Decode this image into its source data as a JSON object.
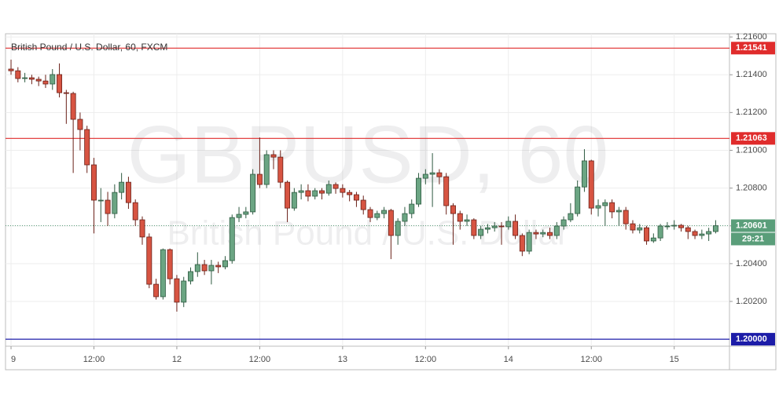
{
  "chart_data": {
    "type": "candlestick",
    "title": "British Pound / U.S. Dollar, 60, FXCM",
    "watermark": "GBPUSD, 60",
    "watermark_subtitle": "British Pound / U.S. Dollar",
    "up_color": "#6ba583",
    "down_color": "#d75442",
    "grid": true,
    "xlim": [
      -0.8,
      104
    ],
    "ylim": [
      1.19963,
      1.21617
    ],
    "xticks": [
      {
        "value": 0,
        "label": "9"
      },
      {
        "value": 12,
        "label": "12:00"
      },
      {
        "value": 24,
        "label": "12"
      },
      {
        "value": 36,
        "label": "12:00"
      },
      {
        "value": 48,
        "label": "13"
      },
      {
        "value": 60,
        "label": "12:00"
      },
      {
        "value": 72,
        "label": "14"
      },
      {
        "value": 84,
        "label": "12:00"
      },
      {
        "value": 96,
        "label": "15"
      }
    ],
    "yticks": [
      {
        "value": 1.216,
        "label": "1.21600"
      },
      {
        "value": 1.214,
        "label": "1.21400"
      },
      {
        "value": 1.212,
        "label": "1.21200"
      },
      {
        "value": 1.21,
        "label": "1.21000"
      },
      {
        "value": 1.208,
        "label": "1.20800"
      },
      {
        "value": 1.206,
        "label": "1.20600"
      },
      {
        "value": 1.204,
        "label": "1.20400"
      },
      {
        "value": 1.202,
        "label": "1.20200"
      }
    ],
    "levels": [
      {
        "value": 1.21541,
        "label": "1.21541",
        "color": "#e02c2c"
      },
      {
        "value": 1.21063,
        "label": "1.21063",
        "color": "#e02c2c"
      },
      {
        "value": 1.2,
        "label": "1.20000",
        "color": "#1c1ca8"
      }
    ],
    "last_price": {
      "value": 1.20601,
      "label": "1.20601",
      "countdown": "29:21",
      "color": "#5a9e7a"
    },
    "x": [
      0,
      1,
      2,
      3,
      4,
      5,
      6,
      7,
      8,
      9,
      10,
      11,
      12,
      13,
      14,
      15,
      16,
      17,
      18,
      19,
      20,
      21,
      22,
      23,
      24,
      25,
      26,
      27,
      28,
      29,
      30,
      31,
      32,
      33,
      34,
      35,
      36,
      37,
      38,
      39,
      40,
      41,
      42,
      43,
      44,
      45,
      46,
      47,
      48,
      49,
      50,
      51,
      52,
      53,
      54,
      55,
      56,
      57,
      58,
      59,
      60,
      61,
      62,
      63,
      64,
      65,
      66,
      67,
      68,
      69,
      70,
      71,
      72,
      73,
      74,
      75,
      76,
      77,
      78,
      79,
      80,
      81,
      82,
      83,
      84,
      85,
      86,
      87,
      88,
      89,
      90,
      91,
      92,
      93,
      94,
      95,
      96,
      97,
      98,
      99,
      100,
      101,
      102
    ],
    "open": [
      1.2143,
      1.21421,
      1.2138,
      1.21384,
      1.21376,
      1.21367,
      1.21351,
      1.21401,
      1.21305,
      1.21301,
      1.21164,
      1.2111,
      1.20923,
      1.20736,
      1.20736,
      1.20665,
      1.20777,
      1.20831,
      1.20723,
      1.20632,
      1.20541,
      1.20291,
      1.20225,
      1.20474,
      1.2032,
      1.20196,
      1.20308,
      1.20358,
      1.20395,
      1.20362,
      1.20391,
      1.20383,
      1.20416,
      1.20644,
      1.20661,
      1.20674,
      1.20873,
      1.20819,
      1.20977,
      1.20964,
      1.20831,
      1.20694,
      1.20777,
      1.20786,
      1.20757,
      1.20786,
      1.20773,
      1.20819,
      1.20798,
      1.20777,
      1.20765,
      1.20736,
      1.20686,
      1.20644,
      1.20665,
      1.20682,
      1.20549,
      1.20624,
      1.20665,
      1.20715,
      1.20852,
      1.20873,
      1.20881,
      1.2086,
      1.20707,
      1.20665,
      1.20624,
      1.20632,
      1.20549,
      1.20582,
      1.2059,
      1.20599,
      1.20595,
      1.20624,
      1.20549,
      1.20466,
      1.20565,
      1.20557,
      1.20565,
      1.20549,
      1.20599,
      1.20632,
      1.20665,
      1.20806,
      1.20944,
      1.20694,
      1.20707,
      1.20723,
      1.20674,
      1.20682,
      1.20611,
      1.20578,
      1.2059,
      1.2052,
      1.20536,
      1.20599,
      1.20599,
      1.20603,
      1.2059,
      1.2057,
      1.20549,
      1.20557,
      1.2057
    ],
    "high": [
      1.2148,
      1.2144,
      1.2141,
      1.214,
      1.2139,
      1.214,
      1.2143,
      1.2146,
      1.2132,
      1.2131,
      1.212,
      1.2113,
      1.2096,
      1.208,
      1.2078,
      1.2082,
      1.2088,
      1.2086,
      1.2074,
      1.2065,
      1.2056,
      1.2032,
      1.2048,
      1.2048,
      1.2034,
      1.2033,
      1.2038,
      1.2046,
      1.2042,
      1.2042,
      1.2041,
      1.2044,
      1.2066,
      1.207,
      1.207,
      1.209,
      1.21068,
      1.21,
      1.21,
      1.21,
      1.2084,
      1.208,
      1.2082,
      1.2082,
      1.208,
      1.208,
      1.2084,
      1.2083,
      1.2082,
      1.2079,
      1.2078,
      1.2076,
      1.207,
      1.2068,
      1.207,
      1.2069,
      1.2064,
      1.207,
      1.2074,
      1.2088,
      1.209,
      1.20985,
      1.209,
      1.2088,
      1.2072,
      1.2068,
      1.2066,
      1.2064,
      1.206,
      1.2061,
      1.2062,
      1.2062,
      1.2065,
      1.2066,
      1.2056,
      1.2058,
      1.2058,
      1.2058,
      1.2059,
      1.2062,
      1.2065,
      1.2072,
      1.2084,
      1.21006,
      1.2095,
      1.2074,
      1.2074,
      1.2074,
      1.207,
      1.207,
      1.2063,
      1.2061,
      1.206,
      1.2056,
      1.2061,
      1.2062,
      1.2063,
      1.2061,
      1.206,
      1.2058,
      1.2058,
      1.2059,
      1.2063
    ],
    "low": [
      1.214,
      1.2136,
      1.2136,
      1.2135,
      1.2134,
      1.2133,
      1.2132,
      1.2128,
      1.2114,
      1.2088,
      1.21,
      1.2088,
      1.2056,
      1.2062,
      1.206,
      1.2064,
      1.2074,
      1.2069,
      1.206,
      1.205,
      1.2027,
      1.2021,
      1.2021,
      1.2029,
      1.20146,
      1.2017,
      1.2029,
      1.2033,
      1.2034,
      1.2029,
      1.2035,
      1.2037,
      1.204,
      1.2062,
      1.2064,
      1.2066,
      1.208,
      1.208,
      1.209,
      1.208,
      1.2062,
      1.2068,
      1.2074,
      1.2073,
      1.2074,
      1.2074,
      1.2076,
      1.2077,
      1.2075,
      1.2073,
      1.207,
      1.2066,
      1.2062,
      1.2063,
      1.2064,
      1.20424,
      1.205,
      1.206,
      1.2064,
      1.207,
      1.2082,
      1.207,
      1.2082,
      1.2066,
      1.205,
      1.2058,
      1.206,
      1.2053,
      1.2053,
      1.2056,
      1.2057,
      1.205,
      1.2058,
      1.2053,
      1.2044,
      1.2045,
      1.2053,
      1.2054,
      1.2053,
      1.2053,
      1.2058,
      1.2062,
      1.2065,
      1.2078,
      1.2066,
      1.2065,
      1.206,
      1.2064,
      1.206,
      1.2058,
      1.2056,
      1.2056,
      1.205,
      1.2051,
      1.2052,
      1.2058,
      1.2058,
      1.2057,
      1.2053,
      1.2053,
      1.2053,
      1.2052,
      1.2056
    ],
    "close": [
      1.21421,
      1.2138,
      1.21384,
      1.21376,
      1.21367,
      1.21351,
      1.21401,
      1.21305,
      1.21301,
      1.21164,
      1.2111,
      1.20923,
      1.20736,
      1.20736,
      1.20665,
      1.20777,
      1.20831,
      1.20723,
      1.20632,
      1.20541,
      1.20291,
      1.20225,
      1.20474,
      1.2032,
      1.20196,
      1.20308,
      1.20358,
      1.20395,
      1.20362,
      1.20391,
      1.20383,
      1.20416,
      1.20644,
      1.20661,
      1.20674,
      1.20873,
      1.20819,
      1.20977,
      1.20964,
      1.20831,
      1.20694,
      1.20777,
      1.20786,
      1.20757,
      1.20786,
      1.20773,
      1.20819,
      1.20798,
      1.20777,
      1.20765,
      1.20736,
      1.20686,
      1.20644,
      1.20665,
      1.20682,
      1.20549,
      1.20624,
      1.20665,
      1.20715,
      1.20852,
      1.20873,
      1.20881,
      1.2086,
      1.20707,
      1.20665,
      1.20624,
      1.20632,
      1.20549,
      1.20582,
      1.2059,
      1.20599,
      1.20595,
      1.20624,
      1.20549,
      1.20466,
      1.20565,
      1.20557,
      1.20565,
      1.20549,
      1.20599,
      1.20632,
      1.20665,
      1.20806,
      1.20944,
      1.20694,
      1.20707,
      1.20723,
      1.20674,
      1.20682,
      1.20611,
      1.20578,
      1.2059,
      1.2052,
      1.20536,
      1.20599,
      1.20599,
      1.20603,
      1.2059,
      1.2057,
      1.20549,
      1.20557,
      1.2057,
      1.20601
    ]
  }
}
